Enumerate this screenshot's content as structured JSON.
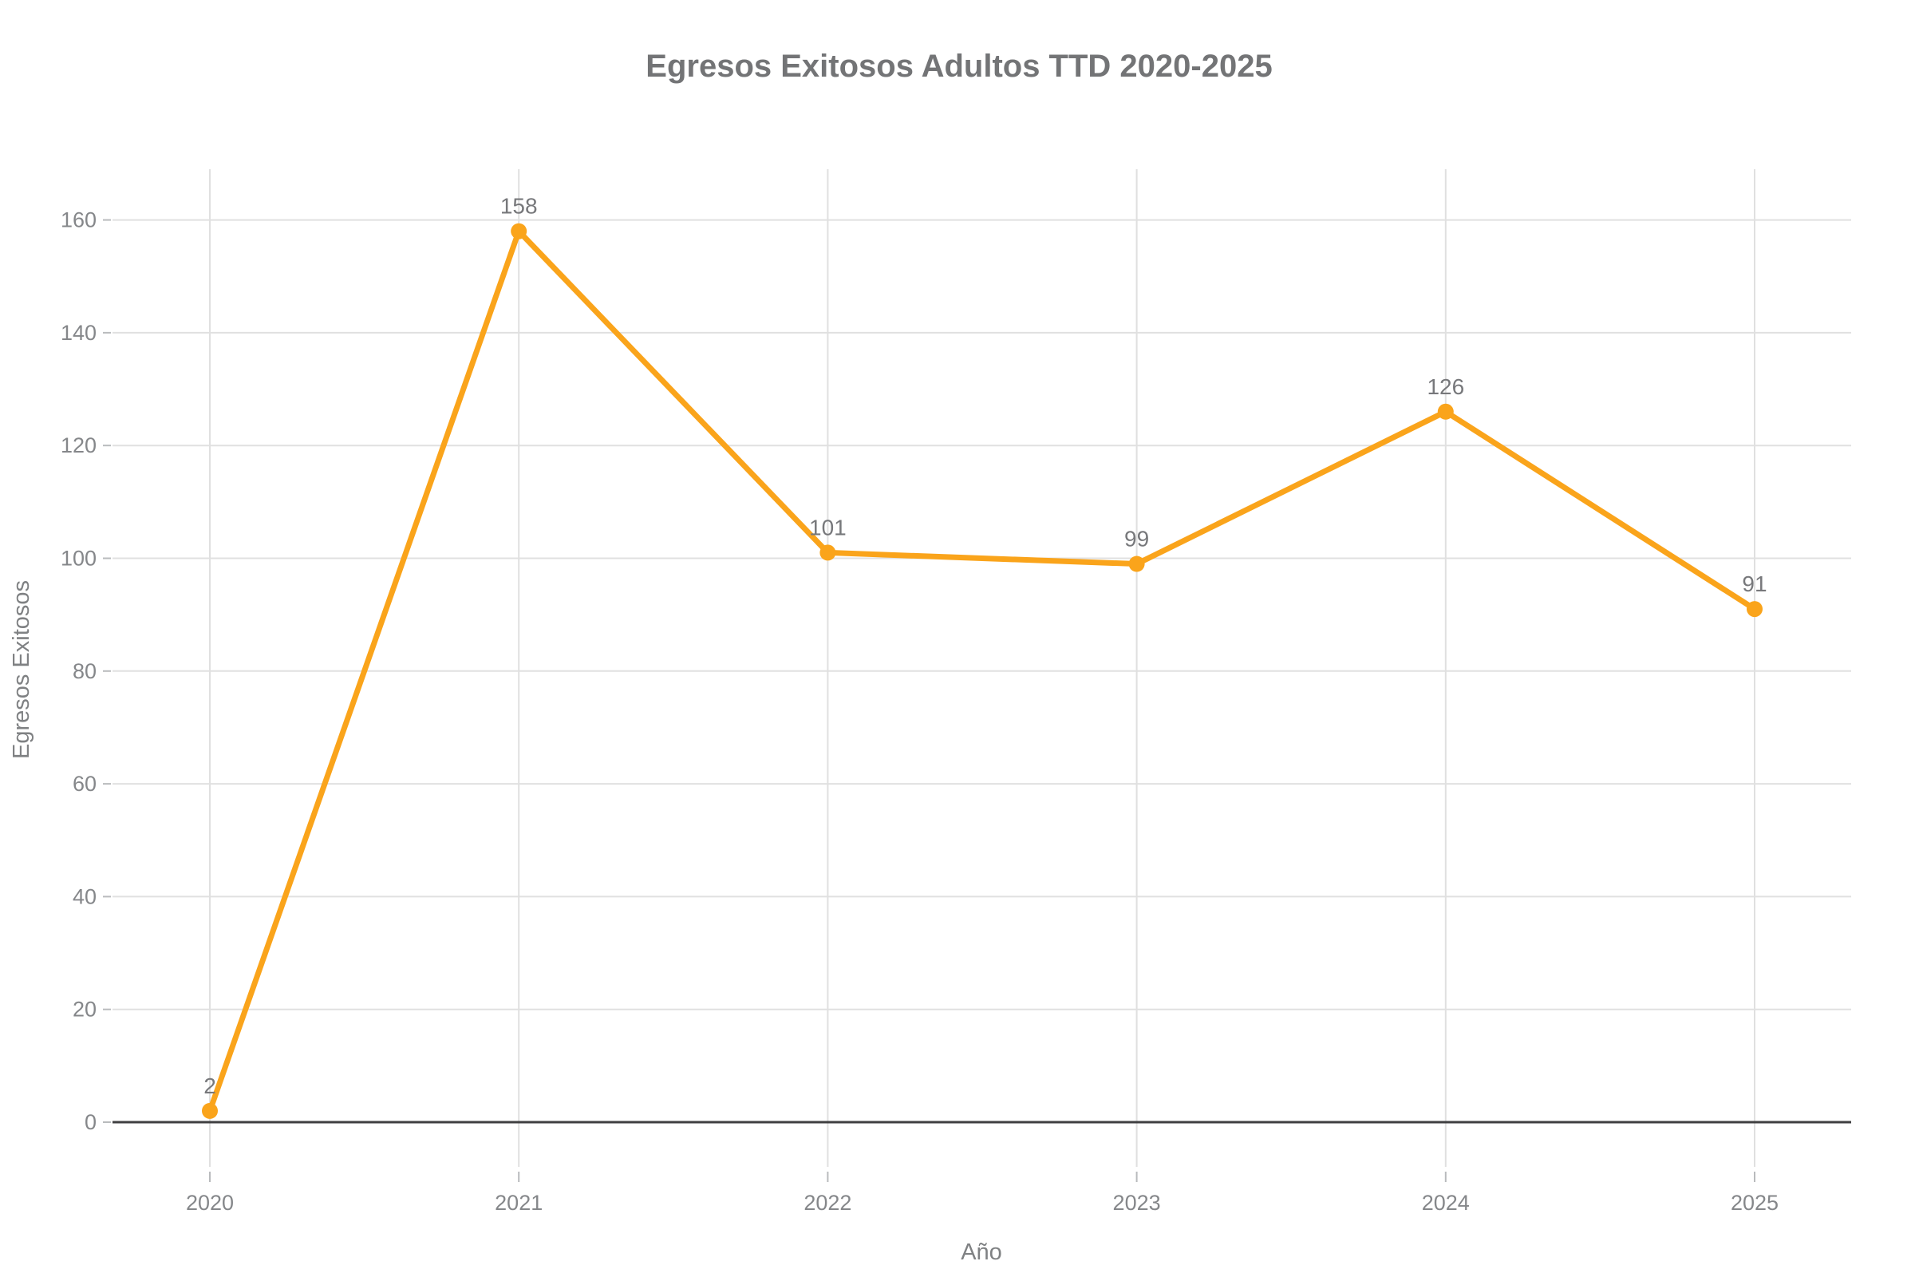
{
  "chart_data": {
    "type": "line",
    "title": "Egresos Exitosos Adultos TTD 2020-2025",
    "xlabel": "Año",
    "ylabel": "Egresos Exitosos",
    "categories": [
      "2020",
      "2021",
      "2022",
      "2023",
      "2024",
      "2025"
    ],
    "values": [
      2,
      158,
      101,
      99,
      126,
      91
    ],
    "point_labels": [
      "2",
      "158",
      "101",
      "99",
      "126",
      "91"
    ],
    "yticks": [
      0,
      20,
      40,
      60,
      80,
      100,
      120,
      140,
      160
    ],
    "ylim": [
      0,
      169
    ],
    "grid": "both",
    "legend_position": "none",
    "show_point_labels": true
  },
  "colors": {
    "line": "#faa41b",
    "marker": "#faa41b",
    "title_text": "#737476",
    "axis_text": "#85878a",
    "point_label_text": "#77787b",
    "gridline": "#e0e0e0",
    "tick_mark": "#b9bbbd",
    "axis_line": "#3f3f41",
    "background": "#ffffff"
  }
}
